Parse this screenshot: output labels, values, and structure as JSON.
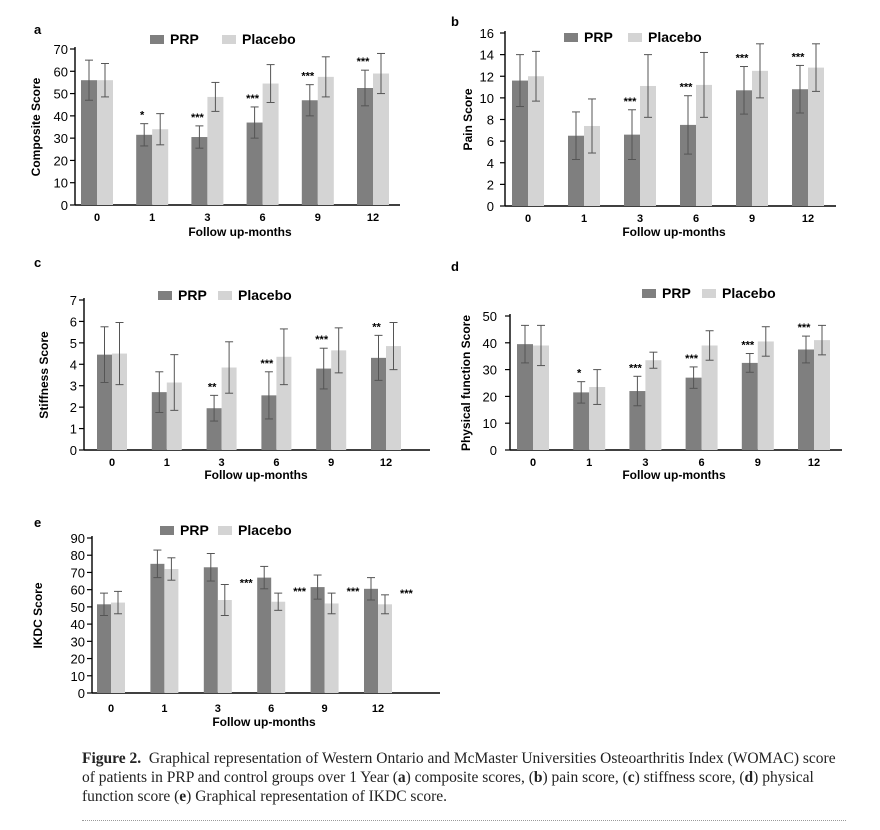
{
  "colors": {
    "prp": "#7f7f7f",
    "placebo": "#d4d4d4",
    "axis": "#000000",
    "error": "#555555"
  },
  "caption": {
    "label": "Figure 2.",
    "text_1": "Graphical representation of Western Ontario and McMaster Universities Osteoarthritis Index (WOMAC) score of patients in PRP and control groups over 1 Year (",
    "a": "a",
    "text_2": ") composite scores, (",
    "b": "b",
    "text_3": ") pain score, (",
    "c": "c",
    "text_4": ") stiffness score, (",
    "d": "d",
    "text_5": ") physical function score (",
    "e": "e",
    "text_6": ") Graphical representation of IKDC score."
  },
  "chart_data": [
    {
      "type": "bar",
      "panel": "a",
      "ylabel": "Composite  Score",
      "xlabel": "Follow up-months",
      "categories": [
        "0",
        "1",
        "3",
        "6",
        "9",
        "12"
      ],
      "ylim": [
        0,
        70
      ],
      "yticks": [
        0,
        10,
        20,
        30,
        40,
        50,
        60,
        70
      ],
      "legend": "top",
      "grid": false,
      "series": [
        {
          "name": "PRP",
          "values": [
            56,
            31.5,
            30.5,
            37,
            47,
            52.5
          ],
          "errors": [
            9,
            5,
            5,
            7,
            7,
            8
          ]
        },
        {
          "name": "Placebo",
          "values": [
            56,
            34,
            48.5,
            54.5,
            57.5,
            59
          ],
          "errors": [
            7.5,
            7,
            6.5,
            8.5,
            9,
            9
          ]
        }
      ],
      "significance": [
        "",
        "*",
        "***",
        "***",
        "***",
        "***"
      ]
    },
    {
      "type": "bar",
      "panel": "b",
      "ylabel": "Pain Score",
      "xlabel": "Follow up-months",
      "categories": [
        "0",
        "1",
        "3",
        "6",
        "9",
        "12"
      ],
      "ylim": [
        0,
        16
      ],
      "yticks": [
        0,
        2,
        4,
        6,
        8,
        10,
        12,
        14,
        16
      ],
      "legend": "top",
      "grid": false,
      "series": [
        {
          "name": "PRP",
          "values": [
            11.6,
            6.5,
            6.6,
            7.5,
            10.7,
            10.8
          ],
          "errors": [
            2.4,
            2.2,
            2.3,
            2.7,
            2.2,
            2.2
          ]
        },
        {
          "name": "Placebo",
          "values": [
            12,
            7.4,
            11.1,
            11.2,
            12.5,
            12.8
          ],
          "errors": [
            2.3,
            2.5,
            2.9,
            3,
            2.5,
            2.2
          ]
        }
      ],
      "significance": [
        "",
        "",
        "***",
        "***",
        "***",
        "***"
      ]
    },
    {
      "type": "bar",
      "panel": "c",
      "ylabel": "Stiffness  Score",
      "xlabel": "Follow up-months",
      "categories": [
        "0",
        "1",
        "3",
        "6",
        "9",
        "12"
      ],
      "ylim": [
        0,
        7
      ],
      "yticks": [
        0,
        1,
        2,
        3,
        4,
        5,
        6,
        7
      ],
      "legend": "top",
      "grid": false,
      "series": [
        {
          "name": "PRP",
          "values": [
            4.45,
            2.7,
            1.95,
            2.55,
            3.8,
            4.3
          ],
          "errors": [
            1.3,
            0.95,
            0.6,
            1.1,
            0.95,
            1.05
          ]
        },
        {
          "name": "Placebo",
          "values": [
            4.5,
            3.15,
            3.85,
            4.35,
            4.65,
            4.85
          ],
          "errors": [
            1.45,
            1.3,
            1.2,
            1.3,
            1.05,
            1.1
          ]
        }
      ],
      "significance": [
        "",
        "",
        "**",
        "***",
        "***",
        "**"
      ]
    },
    {
      "type": "bar",
      "panel": "d",
      "ylabel": "Physical function  Score",
      "xlabel": "Follow up-months",
      "categories": [
        "0",
        "1",
        "3",
        "6",
        "9",
        "12"
      ],
      "ylim": [
        0,
        50
      ],
      "yticks": [
        0,
        10,
        20,
        30,
        40,
        50
      ],
      "legend": "top",
      "grid": false,
      "series": [
        {
          "name": "PRP",
          "values": [
            39.5,
            21.5,
            22,
            27,
            32.5,
            37.5
          ],
          "errors": [
            7,
            4,
            5.5,
            4,
            3.5,
            5
          ]
        },
        {
          "name": "Placebo",
          "values": [
            39,
            23.5,
            33.5,
            39,
            40.5,
            41
          ],
          "errors": [
            7.5,
            6.5,
            3,
            5.5,
            5.5,
            5.5
          ]
        }
      ],
      "significance": [
        "",
        "*",
        "***",
        "***",
        "***",
        "***"
      ]
    },
    {
      "type": "bar",
      "panel": "e",
      "ylabel": "IKDC Score",
      "xlabel": "Follow up-months",
      "categories": [
        "0",
        "1",
        "3",
        "6",
        "9",
        "12"
      ],
      "ylim": [
        0,
        90
      ],
      "yticks": [
        0,
        10,
        20,
        30,
        40,
        50,
        60,
        70,
        80,
        90
      ],
      "legend": "top",
      "grid": false,
      "series": [
        {
          "name": "PRP",
          "values": [
            51.5,
            75,
            73,
            67,
            61.5,
            60.5
          ],
          "errors": [
            6.5,
            8,
            8,
            6.5,
            7,
            6.5
          ]
        },
        {
          "name": "Placebo",
          "values": [
            52.5,
            72,
            54,
            53,
            52,
            51.5
          ],
          "errors": [
            6.5,
            6.5,
            9,
            5,
            6,
            5.5
          ]
        }
      ],
      "significance": [
        "",
        "",
        "***",
        "***",
        "***",
        "***"
      ]
    }
  ]
}
